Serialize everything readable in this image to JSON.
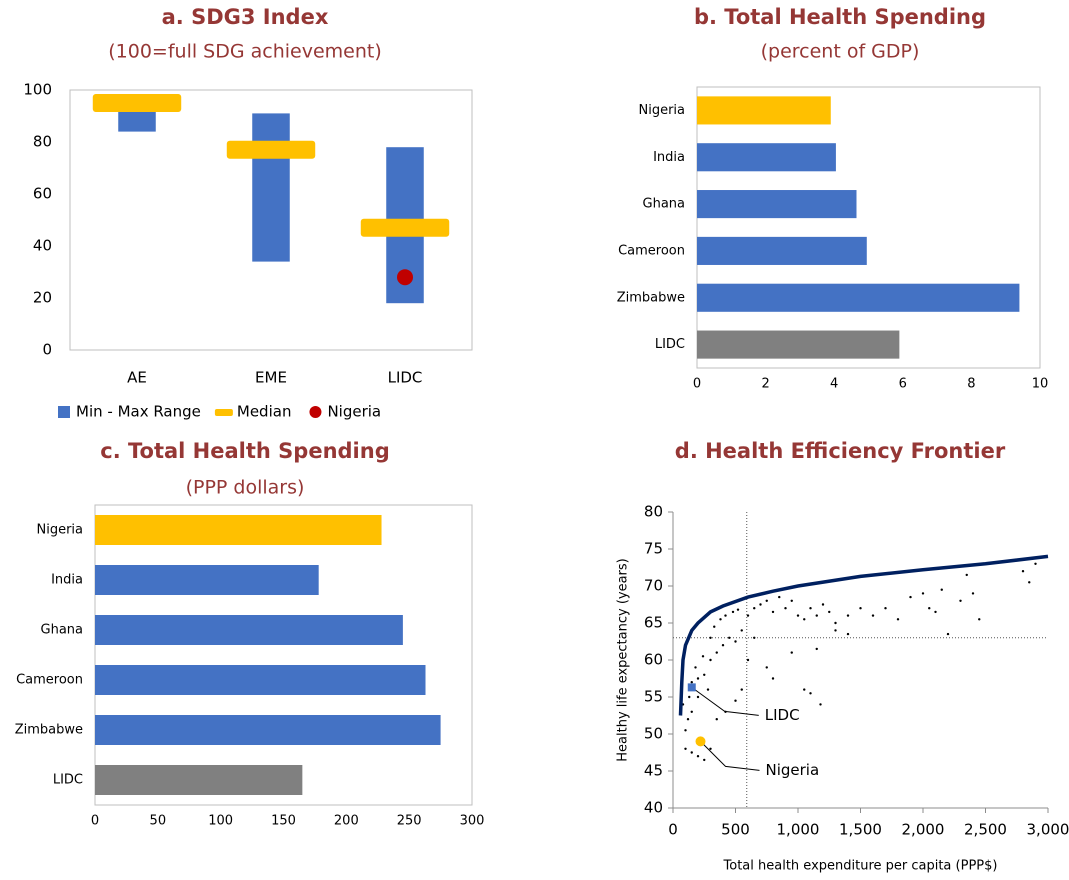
{
  "chart_data": [
    {
      "type": "range",
      "title": "a. SDG3 Index",
      "subtitle": "(100=full SDG achievement)",
      "categories": [
        "AE",
        "EME",
        "LIDC"
      ],
      "series": [
        {
          "name": "Min - Max Range",
          "color": "#4472c4",
          "low": [
            84,
            34,
            18
          ],
          "high": [
            97,
            91,
            78
          ]
        },
        {
          "name": "Median",
          "color": "#ffc000",
          "values": [
            95,
            77,
            47
          ]
        },
        {
          "name": "Nigeria",
          "color": "#c00000",
          "values": [
            null,
            null,
            28
          ]
        }
      ],
      "ylim": [
        0,
        100
      ],
      "yticks": [
        0,
        20,
        40,
        60,
        80,
        100
      ],
      "legend": "bottom"
    },
    {
      "type": "bar",
      "orientation": "horizontal",
      "title": "b. Total Health Spending",
      "subtitle": "(percent of GDP)",
      "categories": [
        "Nigeria",
        "India",
        "Ghana",
        "Cameroon",
        "Zimbabwe",
        "LIDC"
      ],
      "values": [
        3.9,
        4.05,
        4.65,
        4.95,
        9.4,
        5.9
      ],
      "colors": [
        "#ffc000",
        "#4472c4",
        "#4472c4",
        "#4472c4",
        "#4472c4",
        "#808080"
      ],
      "xlim": [
        0,
        10
      ],
      "xticks": [
        0,
        2,
        4,
        6,
        8,
        10
      ]
    },
    {
      "type": "bar",
      "orientation": "horizontal",
      "title": "c. Total Health Spending",
      "subtitle": "(PPP dollars)",
      "categories": [
        "Nigeria",
        "India",
        "Ghana",
        "Cameroon",
        "Zimbabwe",
        "LIDC"
      ],
      "values": [
        228,
        178,
        245,
        263,
        275,
        165
      ],
      "colors": [
        "#ffc000",
        "#4472c4",
        "#4472c4",
        "#4472c4",
        "#4472c4",
        "#808080"
      ],
      "xlim": [
        0,
        300
      ],
      "xticks": [
        0,
        50,
        100,
        150,
        200,
        250,
        300
      ]
    },
    {
      "type": "scatter",
      "title": "d. Health Efficiency Frontier",
      "x_label": "Total health expenditure per capita (PPP$)",
      "y_label": "Healthy  life expectancy (years)",
      "xlim": [
        0,
        3000
      ],
      "xticks": [
        0,
        500,
        {
          "value": 1000,
          "label": "1,000"
        },
        {
          "value": 1500,
          "label": "1,500"
        },
        {
          "value": 2000,
          "label": "2,000"
        },
        {
          "value": 2500,
          "label": "2,500"
        },
        {
          "value": 3000,
          "label": "3,000"
        }
      ],
      "ylim": [
        40,
        80
      ],
      "yticks": [
        40,
        45,
        50,
        55,
        60,
        65,
        70,
        75,
        80
      ],
      "reference_x": 590,
      "reference_y": 63,
      "frontier": {
        "color": "#002060",
        "x": [
          60,
          70,
          80,
          100,
          150,
          200,
          300,
          400,
          600,
          800,
          1000,
          1500,
          2000,
          2500,
          3000
        ],
        "y": [
          52.5,
          57,
          60,
          62,
          64,
          65,
          66.5,
          67.3,
          68.5,
          69.3,
          70,
          71.3,
          72.2,
          73,
          74
        ]
      },
      "points": {
        "color": "#000000",
        "x": [
          100,
          120,
          80,
          150,
          200,
          250,
          300,
          350,
          400,
          450,
          500,
          550,
          150,
          200,
          180,
          130,
          240,
          280,
          300,
          330,
          380,
          420,
          480,
          520,
          600,
          650,
          700,
          750,
          800,
          850,
          900,
          950,
          1000,
          1050,
          1100,
          1150,
          1200,
          1250,
          1300,
          1400,
          1500,
          1600,
          1700,
          1800,
          1900,
          2000,
          2050,
          2100,
          2150,
          2200,
          2300,
          2350,
          2400,
          2450,
          2800,
          2850,
          2900,
          750,
          800,
          1050,
          1100,
          1180,
          950,
          1150,
          600,
          550,
          500,
          420,
          350,
          200,
          250,
          300,
          100,
          150,
          1400,
          1300,
          650
        ],
        "y": [
          50.5,
          52,
          54,
          53,
          55,
          58,
          60,
          61,
          62,
          63,
          62.5,
          64,
          57,
          57.5,
          59,
          55,
          60.5,
          56,
          63,
          64.5,
          65.5,
          66,
          66.5,
          66.8,
          66,
          67,
          67.5,
          68,
          66.5,
          68.5,
          67,
          68,
          66,
          65.5,
          67,
          66,
          67.5,
          66.5,
          65,
          66,
          67,
          66,
          67,
          65.5,
          68.5,
          69,
          67,
          66.5,
          69.5,
          63.5,
          68,
          71.5,
          69,
          65.5,
          72,
          70.5,
          73,
          59,
          57.5,
          56,
          55.5,
          54,
          61,
          61.5,
          60,
          56,
          54.5,
          53,
          52,
          47,
          46.5,
          48,
          48,
          47.5,
          63.5,
          64,
          63
        ]
      },
      "highlights": [
        {
          "name": "LIDC",
          "x": 150,
          "y": 56.3,
          "color": "#4472c4"
        },
        {
          "name": "Nigeria",
          "x": 220,
          "y": 49,
          "color": "#ffc000"
        }
      ]
    }
  ]
}
